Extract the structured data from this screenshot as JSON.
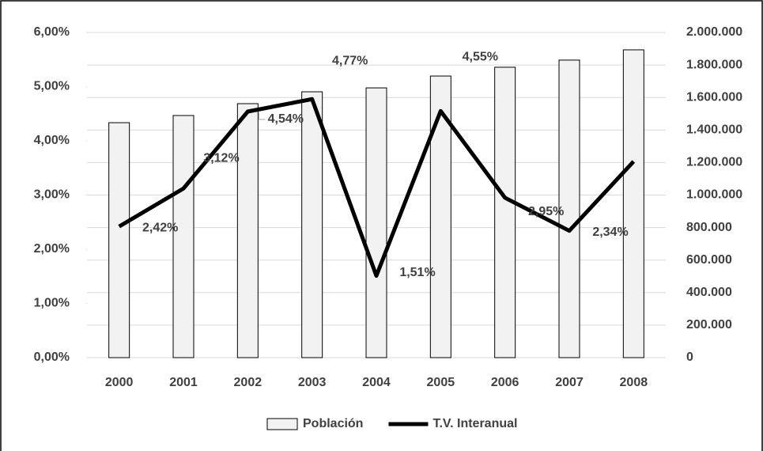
{
  "chart_data": {
    "type": "combo",
    "categories": [
      "2000",
      "2001",
      "2002",
      "2003",
      "2004",
      "2005",
      "2006",
      "2007",
      "2008"
    ],
    "series": [
      {
        "name": "Población",
        "type": "bar",
        "axis": "y2",
        "color": "#f2f2f2",
        "values": [
          1445000,
          1489000,
          1562000,
          1635000,
          1659000,
          1732000,
          1786000,
          1830000,
          1893000
        ]
      },
      {
        "name": "T.V. Interanual",
        "type": "line",
        "axis": "y",
        "color": "#000000",
        "values": [
          2.42,
          3.12,
          4.54,
          4.77,
          1.51,
          4.55,
          2.95,
          2.34,
          3.62
        ],
        "value_labels": [
          "2,42%",
          "3,12%",
          "4,54%",
          "4,77%",
          "1,51%",
          "4,55%",
          "2,95%",
          "2,34%",
          null
        ]
      }
    ],
    "ylim": [
      0,
      6
    ],
    "yticks": [
      {
        "value": 0,
        "label": "0,00%"
      },
      {
        "value": 1,
        "label": "1,00%"
      },
      {
        "value": 2,
        "label": "2,00%"
      },
      {
        "value": 3,
        "label": "3,00%"
      },
      {
        "value": 4,
        "label": "4,00%"
      },
      {
        "value": 5,
        "label": "5,00%"
      },
      {
        "value": 6,
        "label": "6,00%"
      }
    ],
    "y2lim": [
      0,
      2000000
    ],
    "y2ticks": [
      0,
      {
        "value": 200000,
        "label": "200.000"
      },
      {
        "value": 400000,
        "label": "400.000"
      },
      {
        "value": 600000,
        "label": "600.000"
      },
      {
        "value": 800000,
        "label": "800.000"
      },
      {
        "value": 1000000,
        "label": "1.000.000"
      },
      {
        "value": 1200000,
        "label": "1.200.000"
      },
      {
        "value": 1400000,
        "label": "1.400.000"
      },
      {
        "value": 1600000,
        "label": "1.600.000"
      },
      {
        "value": 1800000,
        "label": "1.800.000"
      },
      {
        "value": 2000000,
        "label": "2.000.000"
      }
    ],
    "grid": true,
    "legend": "bottom"
  }
}
